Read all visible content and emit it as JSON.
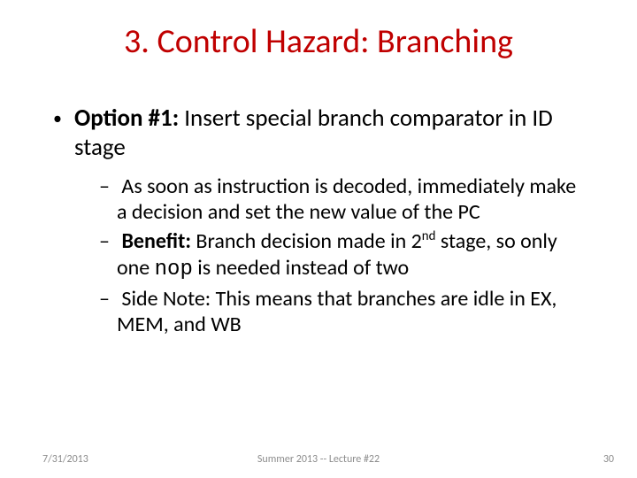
{
  "colors": {
    "title": "#c00000",
    "body": "#000000",
    "footer": "#8c8c8c",
    "background": "#ffffff"
  },
  "typography": {
    "title_fontsize": 38,
    "l1_fontsize": 27,
    "l2_fontsize": 24,
    "footer_fontsize": 12,
    "mono_family": "Courier New"
  },
  "title": "3. Control Hazard: Branching",
  "l1": {
    "bullet": "•",
    "bold": "Option #1:",
    "rest": "  Insert special branch comparator in ID stage"
  },
  "l2": {
    "dash": "–",
    "a": " As soon as instruction is decoded, immediately make a decision and set the new value of the PC",
    "b_bold": "Benefit:",
    "b_rest1": "  Branch decision made in 2",
    "b_sup": "nd",
    "b_rest2": " stage, so only one ",
    "b_mono": "nop",
    "b_rest3": " is needed instead of two",
    "c": " Side Note:  This means that branches are idle in EX, MEM, and WB"
  },
  "footer": {
    "date": "7/31/2013",
    "mid": "Summer 2013 -- Lecture #22",
    "num": "30"
  }
}
